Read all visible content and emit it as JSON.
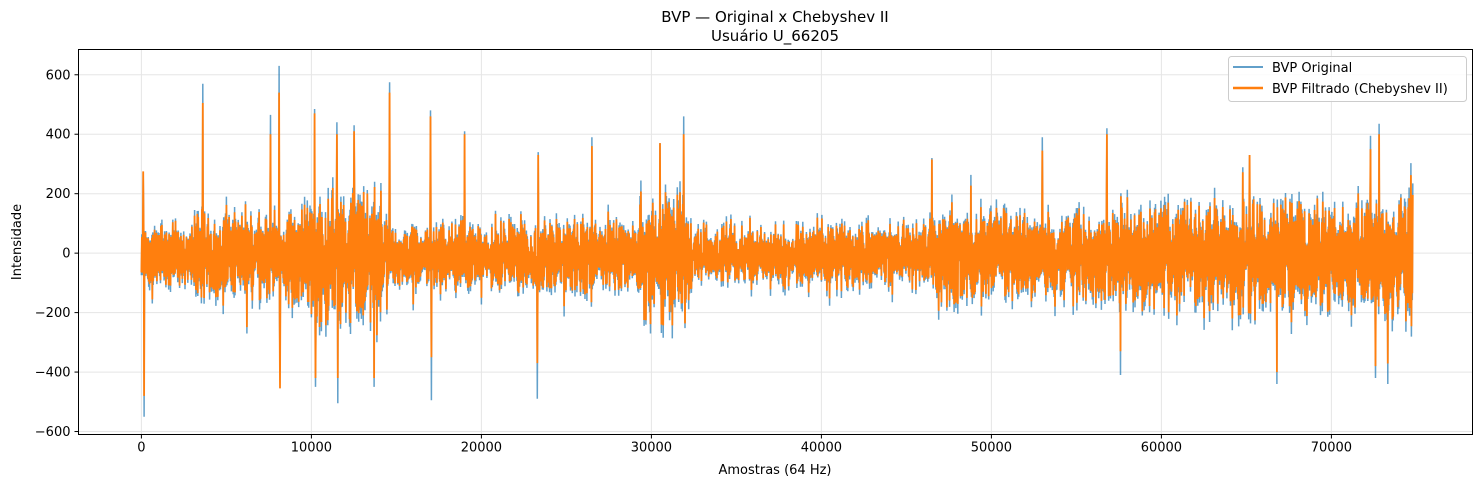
{
  "chart_data": {
    "type": "line",
    "title": "BVP — Original x Chebyshev II",
    "subtitle": "Usuário U_66205",
    "xlabel": "Amostras (64 Hz)",
    "ylabel": "Intensidade",
    "xlim": [
      -3700,
      78300
    ],
    "ylim": [
      -610,
      685
    ],
    "x_ticks": [
      0,
      10000,
      20000,
      30000,
      40000,
      50000,
      60000,
      70000
    ],
    "y_ticks": [
      -600,
      -400,
      -200,
      0,
      200,
      400,
      600
    ],
    "grid": true,
    "legend_position": "top-right",
    "n_samples": 74800,
    "series": [
      {
        "name": "BVP Original",
        "color": "#1f77b4",
        "alpha": 0.7
      },
      {
        "name": "BVP Filtrado (Chebyshev II)",
        "color": "#ff7f0e",
        "alpha": 1.0
      }
    ],
    "envelope_note_x": [
      0,
      3000,
      3500,
      9000,
      10000,
      14000,
      14500,
      17000,
      17500,
      29000,
      29500,
      32000,
      32500,
      46000,
      46500,
      57000,
      57500,
      75000
    ],
    "envelope_amplitude": [
      110,
      110,
      160,
      160,
      230,
      250,
      110,
      110,
      130,
      120,
      240,
      230,
      110,
      120,
      170,
      160,
      190,
      200
    ],
    "spikes": [
      {
        "x": 150,
        "original": -550,
        "filtered": -480
      },
      {
        "x": 100,
        "original": 270,
        "filtered": 275
      },
      {
        "x": 3600,
        "original": 570,
        "filtered": 505
      },
      {
        "x": 7600,
        "original": 465,
        "filtered": 400
      },
      {
        "x": 8100,
        "original": 630,
        "filtered": 540
      },
      {
        "x": 8150,
        "original": -400,
        "filtered": -455
      },
      {
        "x": 10200,
        "original": 485,
        "filtered": 470
      },
      {
        "x": 10250,
        "original": -450,
        "filtered": -420
      },
      {
        "x": 11500,
        "original": 440,
        "filtered": 400
      },
      {
        "x": 11550,
        "original": -505,
        "filtered": -420
      },
      {
        "x": 12500,
        "original": 430,
        "filtered": 410
      },
      {
        "x": 13700,
        "original": -450,
        "filtered": -420
      },
      {
        "x": 14600,
        "original": 575,
        "filtered": 540
      },
      {
        "x": 17000,
        "original": 480,
        "filtered": 460
      },
      {
        "x": 17050,
        "original": -495,
        "filtered": -350
      },
      {
        "x": 19000,
        "original": 410,
        "filtered": 400
      },
      {
        "x": 23300,
        "original": -490,
        "filtered": -370
      },
      {
        "x": 23350,
        "original": 340,
        "filtered": 330
      },
      {
        "x": 26500,
        "original": 390,
        "filtered": 360
      },
      {
        "x": 30500,
        "original": 370,
        "filtered": 370
      },
      {
        "x": 31900,
        "original": 460,
        "filtered": 400
      },
      {
        "x": 46500,
        "original": 320,
        "filtered": 315
      },
      {
        "x": 53000,
        "original": 390,
        "filtered": 345
      },
      {
        "x": 56800,
        "original": 420,
        "filtered": 400
      },
      {
        "x": 57600,
        "original": -410,
        "filtered": -330
      },
      {
        "x": 65200,
        "original": 330,
        "filtered": 330
      },
      {
        "x": 66800,
        "original": -440,
        "filtered": -400
      },
      {
        "x": 72300,
        "original": 395,
        "filtered": 350
      },
      {
        "x": 72800,
        "original": 435,
        "filtered": 400
      },
      {
        "x": 72600,
        "original": -420,
        "filtered": -380
      }
    ]
  }
}
